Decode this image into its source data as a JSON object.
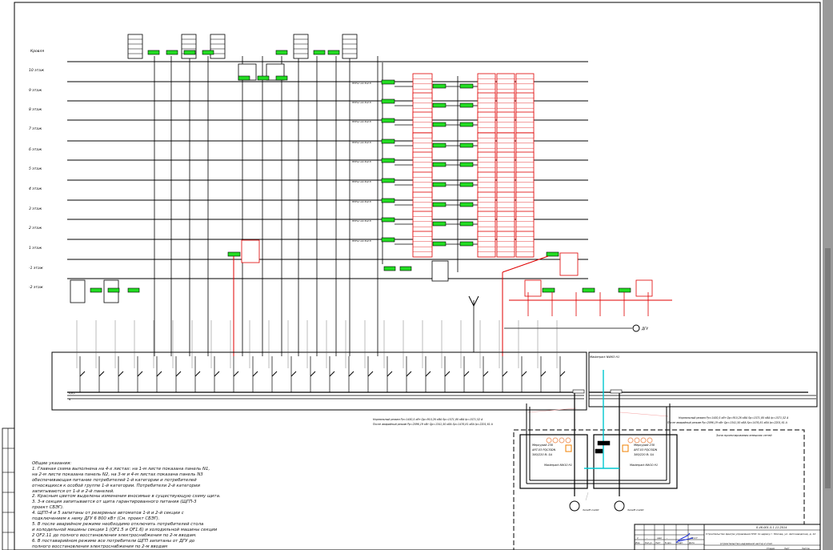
{
  "floors": [
    "Кровля",
    "10 этаж",
    "9 этаж",
    "8 этаж",
    "7 этаж",
    "6 этаж",
    "5 этаж",
    "4 этаж",
    "3 этаж",
    "2 этаж",
    "1 этаж",
    "-1 этаж",
    "-2 этаж"
  ],
  "notes": {
    "title": "Общие указания:",
    "lines": [
      "1. Главная схема выполнена на 4-х листах: на 1-м листе показана панель N1,",
      "на 2-м листе показана панель N2, на 3-м и 4-м листах показана панель N3",
      "обеспечивающая питание потребителей 1-й категории и потребителей",
      "относящихся к особой группе 1-й категории. Потребители 2-й категории",
      "запитываются от 1-й и 2-й панелей.",
      "2. Красным цветом выделены изменения вносимые в существующую схему щита.",
      "3. 3-я секция запитывается от щита гарантированного питания (ЩГП-3",
      "проект СБЭГ).",
      "4. ЩГП-4 и 5 запитаны от резервных автоматов 1-й и 2-й секции с",
      "подключением к нему ДГУ 6 800 кВт (См. проект СБЭГ).",
      "5. В после аварийном режиме необходимо отключить потребителей стола",
      "и холодильной машины секции 1 (QF1.5 и QF1.6) и холодильной машины секции",
      "2 QF2.11 до полного восстановления электроснабжения по 2-м вводам.",
      "6. В поставарийном режиме все потребители ЩГП запитаны от ДГУ до",
      "полного восстановления электроснабжения по 2-м вводам"
    ]
  },
  "modes": {
    "normal": "Нормальный режим Рр=1450,5 кВт Qр=910,26 кВА Sр=1571,80 кВА Iр=1571,52 А",
    "post_emergency": "После аварийный режим Рр=2096,19 кВт Qр=1341,50 кВА Sр=1476,81 кВА Iр=2201,61 А"
  },
  "zone_label": "Зона проектирования внешних сетей",
  "dgu_label": "ДГУ",
  "meters": [
    {
      "name": "Меркурий 230",
      "model": "ART-03 PQCSIDN",
      "rating": "380/220 В; 5А"
    },
    {
      "name": "Меркурий 230",
      "model": "ART-03 PQCSIDN",
      "rating": "380/220 В; 5А"
    }
  ],
  "breakers": [
    "Masterpact NW10 H1",
    "Masterpact NW10 H1",
    "Masterpact NW63 H1"
  ],
  "title_block": {
    "code": "0-46-001-5.1.11-2014",
    "object": "Строительство Центра управления МЧС по адресу г. Москва, ул. Автозаводская, д. 12",
    "subtitle": "(строительство надземной части) 2 этап",
    "headers": [
      "Изм.",
      "Кол.уч",
      "Лист",
      "N док.",
      "Подп.",
      "Дата"
    ],
    "row": [
      "1",
      "-",
      "зам",
      "-",
      "",
      "09.17"
    ],
    "stage_headers": [
      "Стадия",
      "Лист",
      "Листов"
    ]
  },
  "colors": {
    "new": "#e00000",
    "panel": "#22dd22",
    "cyan": "#00c8d0",
    "orange": "#f08000",
    "line": "#000000"
  }
}
